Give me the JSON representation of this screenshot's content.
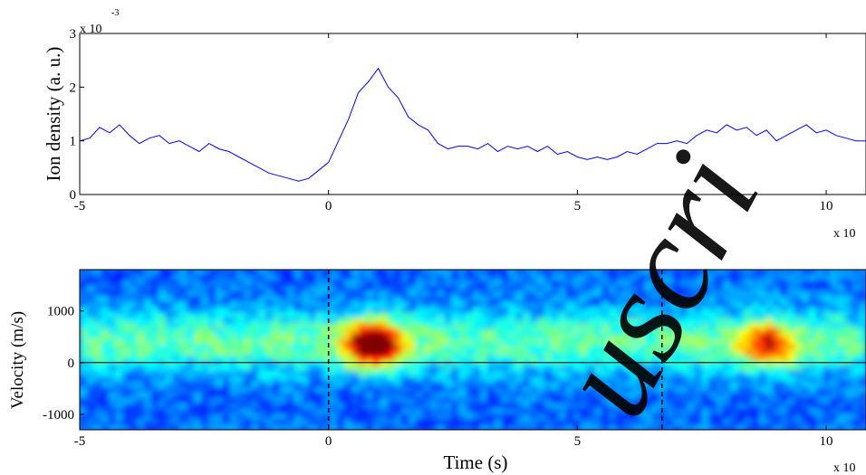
{
  "watermark": "uscri",
  "chart_data": [
    {
      "type": "line",
      "ylabel": "Ion density (a. u.)",
      "xlabel": "",
      "xlim": [
        -5,
        10.8
      ],
      "ylim": [
        0,
        0.003
      ],
      "x_ticks": [
        "-5",
        "0",
        "5",
        "10"
      ],
      "y_ticks": [
        "0",
        "1",
        "2",
        "3"
      ],
      "y_multiplier": "x 10",
      "y_multiplier_exp": "-3",
      "x_multiplier": "x 10",
      "line_color": "#0000ff",
      "series": [
        {
          "x": [
            -5.0,
            -4.8,
            -4.6,
            -4.4,
            -4.2,
            -4.0,
            -3.8,
            -3.6,
            -3.4,
            -3.2,
            -3.0,
            -2.8,
            -2.6,
            -2.4,
            -2.2,
            -2.0,
            -1.8,
            -1.6,
            -1.4,
            -1.2,
            -1.0,
            -0.8,
            -0.6,
            -0.4,
            -0.2,
            0.0,
            0.2,
            0.4,
            0.6,
            0.8,
            1.0,
            1.2,
            1.4,
            1.6,
            1.8,
            2.0,
            2.2,
            2.4,
            2.6,
            2.8,
            3.0,
            3.2,
            3.4,
            3.6,
            3.8,
            4.0,
            4.2,
            4.4,
            4.6,
            4.8,
            5.0,
            5.2,
            5.4,
            5.6,
            5.8,
            6.0,
            6.2,
            6.4,
            6.6,
            6.8,
            7.0,
            7.2,
            7.4,
            7.6,
            7.8,
            8.0,
            8.2,
            8.4,
            8.6,
            8.8,
            9.0,
            9.2,
            9.4,
            9.6,
            9.8,
            10.0,
            10.2,
            10.4,
            10.6,
            10.8
          ],
          "y": [
            0.001,
            0.00105,
            0.00125,
            0.00115,
            0.0013,
            0.0011,
            0.00095,
            0.00105,
            0.0011,
            0.00095,
            0.001,
            0.0009,
            0.0008,
            0.00095,
            0.00085,
            0.0008,
            0.0007,
            0.0006,
            0.0005,
            0.0004,
            0.00035,
            0.0003,
            0.00025,
            0.0003,
            0.00045,
            0.0006,
            0.001,
            0.0014,
            0.0019,
            0.0021,
            0.00235,
            0.002,
            0.0018,
            0.00145,
            0.0013,
            0.0012,
            0.00095,
            0.00085,
            0.0009,
            0.0009,
            0.00085,
            0.00095,
            0.0008,
            0.0009,
            0.00085,
            0.0009,
            0.0008,
            0.0009,
            0.00075,
            0.0008,
            0.0007,
            0.00065,
            0.0007,
            0.00065,
            0.0007,
            0.0008,
            0.00075,
            0.00085,
            0.00095,
            0.00095,
            0.001,
            0.00095,
            0.0011,
            0.0012,
            0.00115,
            0.0013,
            0.0012,
            0.00125,
            0.0011,
            0.0012,
            0.001,
            0.0011,
            0.0012,
            0.0013,
            0.00115,
            0.0012,
            0.0011,
            0.00105,
            0.001,
            0.001
          ]
        }
      ]
    },
    {
      "type": "heatmap",
      "ylabel": "Velocity (m/s)",
      "xlabel": "Time (s)",
      "xlim": [
        -5,
        10.8
      ],
      "ylim": [
        -1300,
        1800
      ],
      "x_ticks": [
        "-5",
        "0",
        "5",
        "10"
      ],
      "y_ticks": [
        "-1000",
        "0",
        "1000"
      ],
      "x_multiplier": "x 10",
      "colormap": "jet",
      "dashed_vlines": [
        0,
        6.7
      ],
      "zero_line": 0,
      "hotspots": [
        {
          "x": 0.9,
          "v": 350,
          "intensity": 1.0
        },
        {
          "x": 8.8,
          "v": 350,
          "intensity": 0.6
        }
      ],
      "background_band": {
        "v_center": 400,
        "v_width": 600,
        "level": 0.45
      }
    }
  ]
}
